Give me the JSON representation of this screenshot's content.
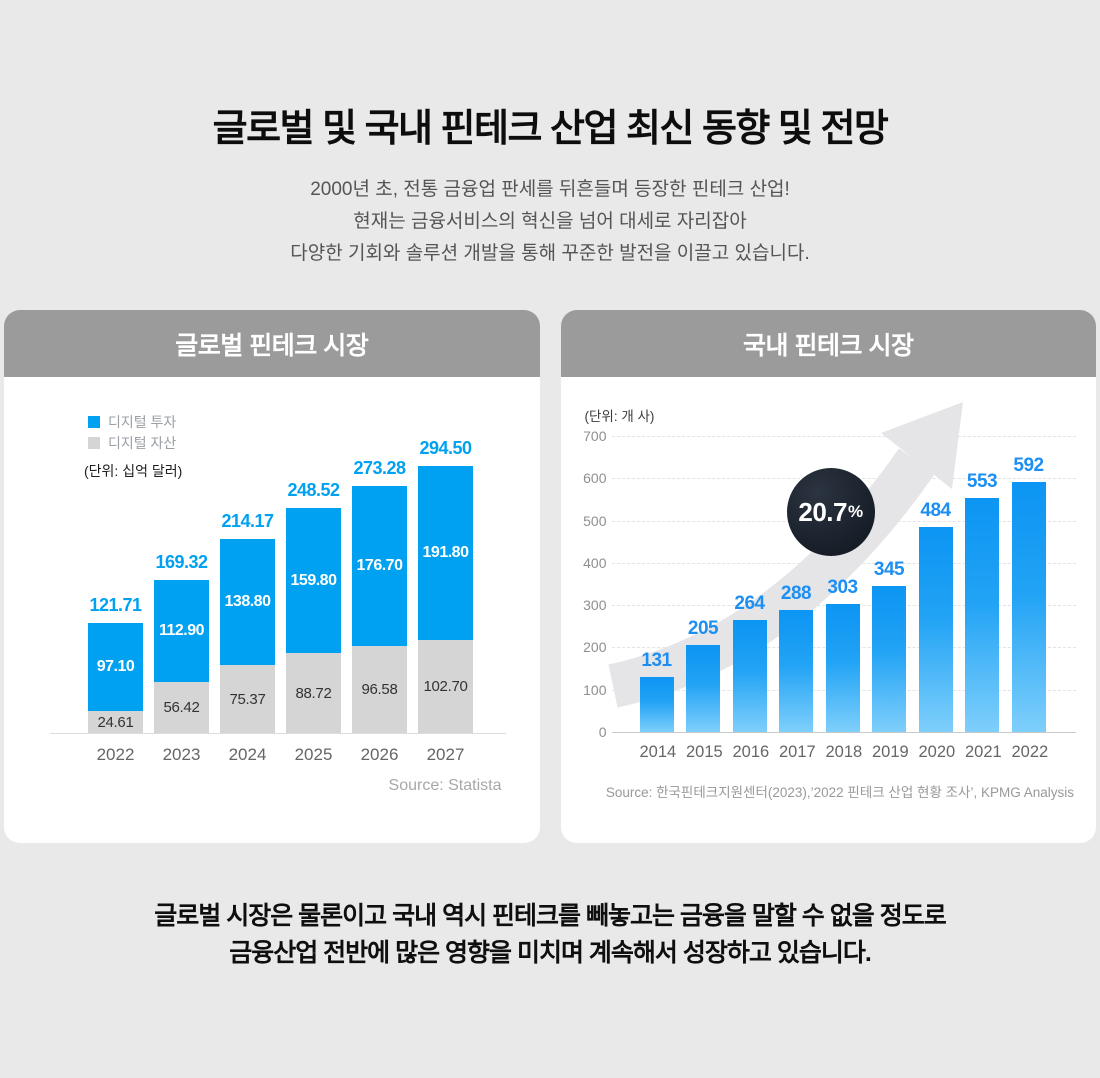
{
  "page": {
    "title": "글로벌 및 국내 핀테크 산업 최신 동향 및 전망",
    "subtitle_lines": [
      "2000년 초, 전통 금융업 판세를 뒤흔들며 등장한 핀테크 산업!",
      "현재는 금융서비스의 혁신을 넘어 대세로 자리잡아",
      "다양한 기회와 솔루션 개발을 통해 꾸준한 발전을 이끌고 있습니다."
    ],
    "footer_lines": [
      "글로벌 시장은 물론이고 국내 역시 핀테크를 빼놓고는 금융을 말할 수 없을 정도로",
      "금융산업 전반에 많은 영향을 미치며 계속해서 성장하고 있습니다."
    ]
  },
  "global": {
    "header": "글로벌 핀테크 시장",
    "unit_label": "(단위: 십억 달러)",
    "source": "Source: Statista"
  },
  "domestic": {
    "header": "국내 핀테크 시장",
    "unit_label": "(단위: 개 사)",
    "growth_value": "20.7",
    "growth_unit": "%",
    "source": "Source: 한국핀테크지원센터(2023),’2022 핀테크 산업 현황 조사’, KPMG Analysis"
  },
  "colors": {
    "background": "#e9e9ea",
    "card_header_gray": "#9b9b9b",
    "accent_blue": "#00a1f1",
    "value_label_blue": "#1e8ff2",
    "gray_segment": "#d5d5d5",
    "bar_gradient_top": "#0c95f3",
    "bar_gradient_bottom": "#7ecffb",
    "badge_dark": "#161d27",
    "arrow_gray": "#e5e5e8"
  },
  "chart_data": [
    {
      "id": "global",
      "type": "bar",
      "stacked": true,
      "title": "글로벌 핀테크 시장",
      "unit": "십억 달러",
      "categories": [
        "2022",
        "2023",
        "2024",
        "2025",
        "2026",
        "2027"
      ],
      "series": [
        {
          "name": "디지털 투자",
          "color": "#00a1f1",
          "values": [
            97.1,
            112.9,
            138.8,
            159.8,
            176.7,
            191.8
          ],
          "labels": [
            "97.10",
            "112.90",
            "138.80",
            "159.80",
            "176.70",
            "191.80"
          ]
        },
        {
          "name": "디지털 자산",
          "color": "#d5d5d5",
          "values": [
            24.61,
            56.42,
            75.37,
            88.72,
            96.58,
            102.7
          ],
          "labels": [
            "24.61",
            "56.42",
            "75.37",
            "88.72",
            "96.58",
            "102.70"
          ]
        }
      ],
      "totals": [
        121.71,
        169.32,
        214.17,
        248.52,
        273.28,
        294.5
      ],
      "total_labels": [
        "121.71",
        "169.32",
        "214.17",
        "248.52",
        "273.28",
        "294.50"
      ],
      "legend_position": "top-left",
      "grid": false,
      "source": "Source: Statista"
    },
    {
      "id": "domestic",
      "type": "bar",
      "title": "국내 핀테크 시장",
      "unit": "개 사",
      "categories": [
        "2014",
        "2015",
        "2016",
        "2017",
        "2018",
        "2019",
        "2020",
        "2021",
        "2022"
      ],
      "values": [
        131,
        205,
        264,
        288,
        303,
        345,
        484,
        553,
        592
      ],
      "ylim": [
        0,
        700
      ],
      "yticks": [
        0,
        100,
        200,
        300,
        400,
        500,
        600,
        700
      ],
      "grid": true,
      "annotation": "20.7%",
      "source": "Source: 한국핀테크지원센터(2023),’2022 핀테크 산업 현황 조사’, KPMG Analysis"
    }
  ]
}
